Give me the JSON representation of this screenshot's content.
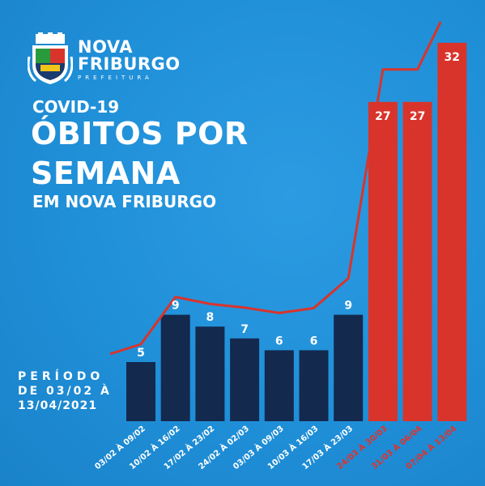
{
  "brand": {
    "line1": "NOVA",
    "line2": "FRIBURGO",
    "line3": "PREFEITURA"
  },
  "title": {
    "small": "COVID-19",
    "big1": "ÓBITOS POR",
    "big2": "SEMANA",
    "sub": "EM NOVA FRIBURGO"
  },
  "period": {
    "l1": "PERÍODO",
    "l2": "DE 03/02 À",
    "l3": "13/04/2021"
  },
  "colors": {
    "background": "#1f8fd8",
    "navy_bar": "#14294e",
    "red_bar": "#d9342b",
    "trend_line": "#d9342b",
    "red_label": "#e0322b"
  },
  "chart_data": {
    "type": "bar",
    "categories": [
      "03/02 À 09/02",
      "10/02 À 16/02",
      "17/02 À 23/02",
      "24/02 À 02/03",
      "03/03 À 09/03",
      "10/03 À 16/03",
      "17/03 À 23/03",
      "24/03 À 30/03",
      "31/03 À 06/04",
      "07/04 À 13/04"
    ],
    "values": [
      5,
      9,
      8,
      7,
      6,
      6,
      9,
      27,
      27,
      32
    ],
    "highlight": [
      false,
      false,
      false,
      false,
      false,
      false,
      false,
      true,
      true,
      true
    ],
    "trend_line": true
  }
}
